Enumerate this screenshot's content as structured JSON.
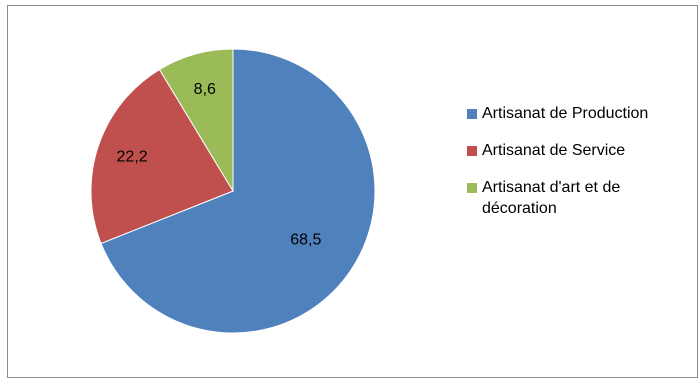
{
  "chart_data": {
    "type": "pie",
    "title": "",
    "start_angle_deg": 0,
    "direction": "clockwise",
    "series": [
      {
        "name": "Artisanat de Production",
        "value": 68.5,
        "label": "68,5",
        "color": "#4F81BD"
      },
      {
        "name": "Artisanat de Service",
        "value": 22.2,
        "label": "22,2",
        "color": "#C0504D"
      },
      {
        "name": "Artisanat d'art et de décoration",
        "value": 8.6,
        "label": "8,6",
        "color": "#9BBB59"
      }
    ],
    "legend": {
      "position": "right",
      "lines": [
        [
          "Artisanat de Production"
        ],
        [
          "Artisanat de Service"
        ],
        [
          "Artisanat d'art et de",
          "décoration"
        ]
      ]
    }
  }
}
